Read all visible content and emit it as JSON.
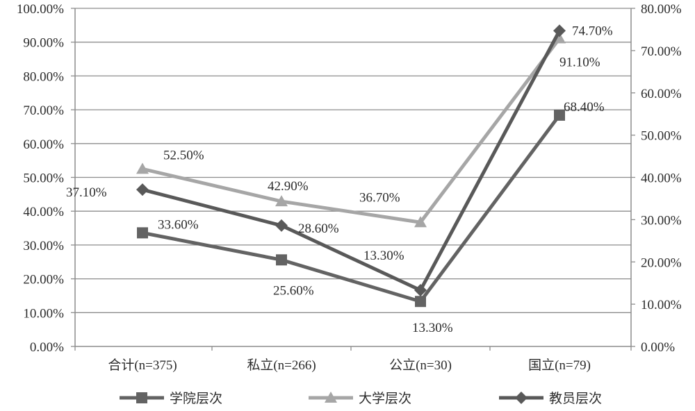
{
  "chart_data": {
    "type": "line",
    "categories": [
      "合计(n=375)",
      "私立(n=266)",
      "公立(n=30)",
      "国立(n=79)"
    ],
    "y_left": {
      "ylim": [
        0,
        100
      ],
      "ticks": [
        "0.00%",
        "10.00%",
        "20.00%",
        "30.00%",
        "40.00%",
        "50.00%",
        "60.00%",
        "70.00%",
        "80.00%",
        "90.00%",
        "100.00%"
      ]
    },
    "y_right": {
      "ylim": [
        0,
        80
      ],
      "ticks": [
        "0.00%",
        "10.00%",
        "20.00%",
        "30.00%",
        "40.00%",
        "50.00%",
        "60.00%",
        "70.00%",
        "80.00%"
      ]
    },
    "grid": true,
    "legend_position": "bottom",
    "series": [
      {
        "name": "学院层次",
        "axis": "left",
        "marker": "square",
        "color": "#636363",
        "values": [
          33.6,
          25.6,
          13.3,
          68.4
        ],
        "labels": [
          "33.60%",
          "25.60%",
          "13.30%",
          "68.40%"
        ]
      },
      {
        "name": "大学层次",
        "axis": "left",
        "marker": "triangle",
        "color": "#a6a6a6",
        "values": [
          52.5,
          42.9,
          36.7,
          91.1
        ],
        "labels": [
          "52.50%",
          "42.90%",
          "36.70%",
          "91.10%"
        ]
      },
      {
        "name": "教员层次",
        "axis": "right",
        "marker": "diamond",
        "color": "#595959",
        "values": [
          37.1,
          28.6,
          13.3,
          74.7
        ],
        "labels": [
          "37.10%",
          "28.60%",
          "13.30%",
          "74.70%"
        ]
      }
    ]
  }
}
